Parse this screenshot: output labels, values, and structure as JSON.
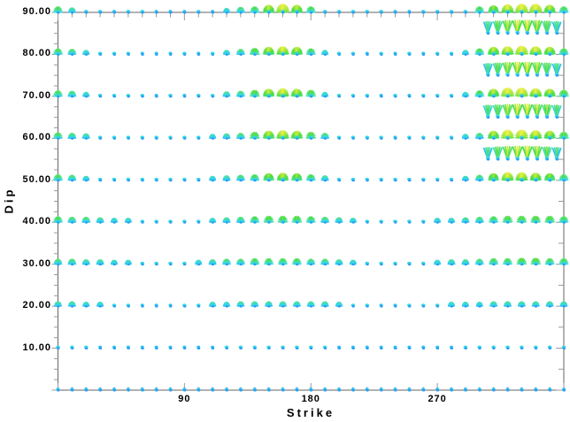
{
  "figure": {
    "background": "#ffffff",
    "box_color": "#666666",
    "tick_color": "#999999",
    "label_color": "#000000"
  },
  "axes": {
    "xlabel": "Strike",
    "ylabel": "Dip",
    "xlim": [
      0,
      360
    ],
    "ylim": [
      0,
      90
    ],
    "xticks": [
      {
        "value": 90,
        "label": "90"
      },
      {
        "value": 180,
        "label": "180"
      },
      {
        "value": 270,
        "label": "270"
      }
    ],
    "yticks": [
      {
        "value": 90,
        "label": "90.00"
      },
      {
        "value": 80,
        "label": "80.00"
      },
      {
        "value": 70,
        "label": "70.00"
      },
      {
        "value": 60,
        "label": "60.00"
      },
      {
        "value": 50,
        "label": "50.00"
      },
      {
        "value": 40,
        "label": "40.00"
      },
      {
        "value": 30,
        "label": "30.00"
      },
      {
        "value": 20,
        "label": "20.00"
      },
      {
        "value": 10,
        "label": "10.00"
      }
    ],
    "x_minor_step": 10,
    "y_minor_step_left": 2.5,
    "y_minor_step_right": 5
  },
  "chart_data": {
    "type": "scatter",
    "glyph": "rake-fan",
    "title": "",
    "xlabel": "Strike",
    "ylabel": "Dip",
    "xlim": [
      0,
      360
    ],
    "ylim": [
      0,
      90
    ],
    "grid": false,
    "legend": false,
    "intensity_scale": {
      "min": 0,
      "max": 10,
      "meaning": "fan size and color of acceptable-solution glyph at each strike/dip node"
    },
    "colormap": [
      {
        "v": 0.0,
        "color": "#28A0F5"
      },
      {
        "v": 1.6,
        "color": "#32D6EB"
      },
      {
        "v": 3.5,
        "color": "#50E18C"
      },
      {
        "v": 6.0,
        "color": "#46DD46"
      },
      {
        "v": 8.0,
        "color": "#AAE83C"
      },
      {
        "v": 10.0,
        "color": "#F2F046"
      }
    ],
    "strike_values": [
      0,
      10,
      20,
      30,
      40,
      50,
      60,
      70,
      80,
      90,
      100,
      110,
      120,
      130,
      140,
      150,
      160,
      170,
      180,
      190,
      200,
      210,
      220,
      230,
      240,
      250,
      260,
      270,
      280,
      290,
      300,
      310,
      320,
      330,
      340,
      350,
      360
    ],
    "main_rows": [
      {
        "dip": 90,
        "intensity": [
          5,
          3,
          1,
          1,
          0,
          1,
          1,
          0,
          0,
          0,
          1,
          0,
          2,
          4,
          5,
          8,
          10,
          8,
          5,
          1,
          1,
          1,
          1,
          1,
          0,
          0,
          1,
          1,
          1,
          1,
          5,
          7,
          9,
          10,
          10,
          8,
          5
        ]
      },
      {
        "dip": 80,
        "intensity": [
          5,
          4,
          2,
          1,
          1,
          1,
          0,
          0,
          0,
          1,
          0,
          1,
          2,
          4,
          6,
          8,
          9,
          8,
          5,
          2,
          1,
          1,
          0,
          1,
          0,
          1,
          0,
          1,
          1,
          2,
          5,
          8,
          9,
          10,
          9,
          8,
          5
        ]
      },
      {
        "dip": 70,
        "intensity": [
          5,
          4,
          2,
          1,
          1,
          1,
          1,
          0,
          1,
          0,
          1,
          1,
          3,
          4,
          6,
          8,
          9,
          8,
          6,
          2,
          1,
          1,
          1,
          0,
          1,
          0,
          1,
          1,
          1,
          2,
          5,
          8,
          10,
          10,
          9,
          8,
          6
        ]
      },
      {
        "dip": 60,
        "intensity": [
          5,
          4,
          3,
          1,
          1,
          1,
          1,
          1,
          1,
          1,
          1,
          2,
          3,
          4,
          6,
          8,
          9,
          8,
          6,
          4,
          1,
          1,
          1,
          1,
          0,
          1,
          1,
          1,
          1,
          2,
          4,
          8,
          10,
          10,
          9,
          8,
          6
        ]
      },
      {
        "dip": 50,
        "intensity": [
          5,
          4,
          2,
          1,
          1,
          1,
          1,
          1,
          1,
          1,
          1,
          2,
          3,
          4,
          5,
          7,
          8,
          7,
          5,
          3,
          1,
          1,
          1,
          1,
          1,
          1,
          1,
          1,
          1,
          2,
          4,
          7,
          9,
          9,
          8,
          7,
          5
        ]
      },
      {
        "dip": 40,
        "intensity": [
          5,
          4,
          4,
          3,
          2,
          2,
          1,
          1,
          1,
          1,
          1,
          2,
          3,
          4,
          5,
          6,
          6,
          6,
          5,
          4,
          3,
          2,
          1,
          1,
          1,
          1,
          1,
          2,
          2,
          3,
          4,
          5,
          6,
          6,
          6,
          6,
          5
        ]
      },
      {
        "dip": 30,
        "intensity": [
          4,
          4,
          3,
          3,
          2,
          2,
          1,
          1,
          1,
          1,
          2,
          3,
          4,
          4,
          5,
          5,
          5,
          5,
          4,
          4,
          3,
          2,
          1,
          1,
          1,
          1,
          1,
          2,
          3,
          3,
          4,
          5,
          5,
          6,
          6,
          5,
          5
        ]
      },
      {
        "dip": 20,
        "intensity": [
          3,
          3,
          2,
          2,
          1,
          1,
          0,
          0,
          0,
          1,
          1,
          2,
          2,
          3,
          3,
          3,
          3,
          3,
          3,
          3,
          2,
          1,
          1,
          0,
          0,
          1,
          1,
          1,
          2,
          2,
          2,
          3,
          3,
          3,
          3,
          3,
          3
        ]
      },
      {
        "dip": 10,
        "intensity": [
          1,
          1,
          1,
          0,
          0,
          0,
          0,
          0,
          0,
          0,
          0,
          0,
          1,
          1,
          1,
          1,
          1,
          1,
          1,
          1,
          0,
          0,
          0,
          0,
          0,
          0,
          0,
          0,
          0,
          1,
          1,
          1,
          1,
          1,
          1,
          1,
          1
        ]
      },
      {
        "dip": 0,
        "intensity": [
          0,
          0,
          0,
          0,
          0,
          0,
          0,
          0,
          0,
          0,
          0,
          0,
          0,
          0,
          0,
          0,
          0,
          0,
          0,
          0,
          0,
          0,
          0,
          0,
          0,
          0,
          0,
          0,
          0,
          0,
          0,
          0,
          0,
          0,
          0,
          0,
          0
        ]
      }
    ],
    "refined_rows": [
      {
        "dip": 85,
        "glyph": "narrow-fan-v",
        "strikes": [
          306,
          313,
          320,
          327,
          334,
          341,
          348,
          355
        ],
        "intensity": [
          4,
          6,
          8,
          9,
          9,
          8,
          6,
          4
        ]
      },
      {
        "dip": 75,
        "glyph": "narrow-fan-v",
        "strikes": [
          306,
          313,
          320,
          327,
          334,
          341,
          348,
          355
        ],
        "intensity": [
          4,
          6,
          8,
          9,
          9,
          8,
          6,
          4
        ]
      },
      {
        "dip": 65,
        "glyph": "narrow-fan-v",
        "strikes": [
          306,
          313,
          320,
          327,
          334,
          341,
          348,
          355
        ],
        "intensity": [
          5,
          6,
          8,
          9,
          9,
          8,
          7,
          5
        ]
      },
      {
        "dip": 55,
        "glyph": "narrow-fan-v",
        "strikes": [
          306,
          313,
          320,
          327,
          334,
          341,
          348,
          355
        ],
        "intensity": [
          4,
          6,
          8,
          9,
          9,
          8,
          6,
          4
        ]
      }
    ]
  }
}
